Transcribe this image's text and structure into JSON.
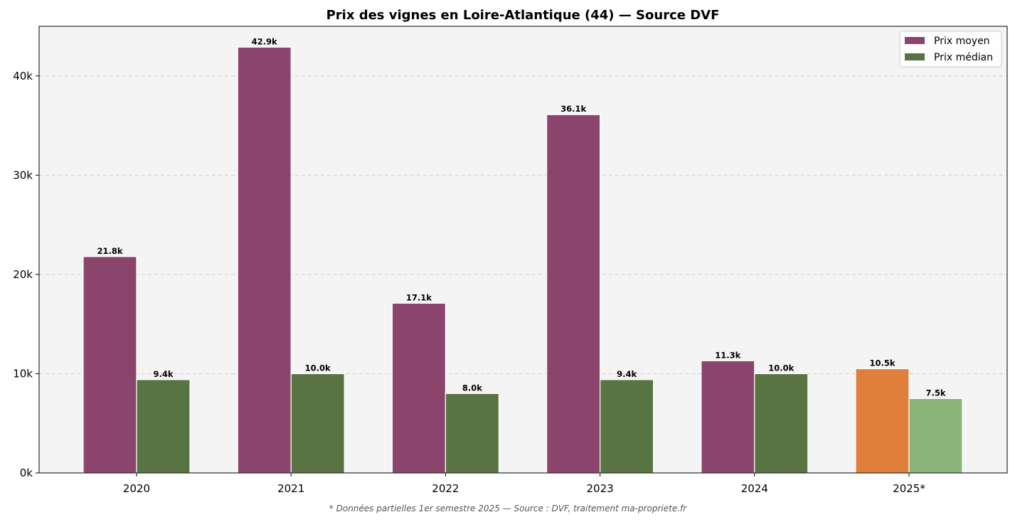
{
  "chart_data": {
    "type": "bar",
    "title": "Prix des vignes en Loire-Atlantique (44) — Source DVF",
    "xlabel": "",
    "ylabel": "",
    "categories": [
      "2020",
      "2021",
      "2022",
      "2023",
      "2024",
      "2025*"
    ],
    "series": [
      {
        "name": "Prix moyen",
        "values": [
          21800,
          42900,
          17100,
          36100,
          11300,
          10500
        ],
        "labels": [
          "21.8k",
          "42.9k",
          "17.1k",
          "36.1k",
          "11.3k",
          "10.5k"
        ],
        "color": "#8B456C",
        "emphasis_color": "#E07E3C"
      },
      {
        "name": "Prix médian",
        "values": [
          9400,
          10000,
          8000,
          9400,
          10000,
          7500
        ],
        "labels": [
          "9.4k",
          "10.0k",
          "8.0k",
          "9.4k",
          "10.0k",
          "7.5k"
        ],
        "color": "#587443",
        "emphasis_color": "#8AB478"
      }
    ],
    "emphasis": [
      "2025*"
    ],
    "ylim": [
      0,
      45000
    ],
    "yticks": [
      0,
      10000,
      20000,
      30000,
      40000
    ],
    "ytick_labels": [
      "0k",
      "10k",
      "20k",
      "30k",
      "40k"
    ],
    "grid": "horizontal dashed",
    "legend_placement": "top-right",
    "background": "#F4F4F4",
    "footnote": "* Données partielles 1er semestre 2025 — Source : DVF, traitement ma-propriete.fr"
  }
}
